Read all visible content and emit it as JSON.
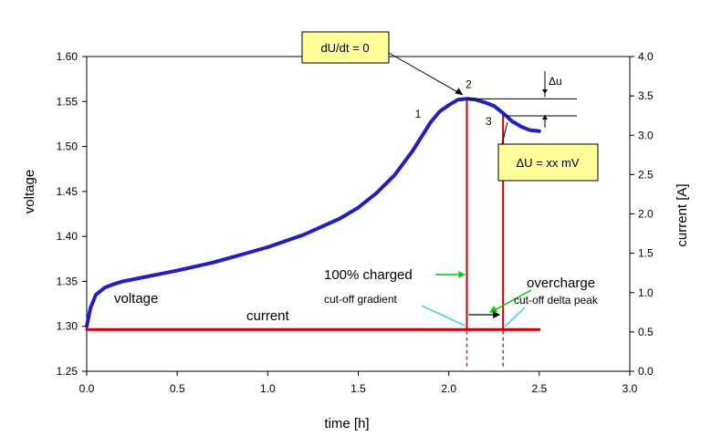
{
  "chart_data": {
    "type": "line",
    "xlabel": "time  [h]",
    "ylabel": "voltage",
    "y2label": "current  [A]",
    "xlim": [
      0.0,
      3.0
    ],
    "ylim": [
      1.25,
      1.6
    ],
    "y2lim": [
      0.0,
      4.0
    ],
    "x_ticks": [
      "0.0",
      "0.5",
      "1.0",
      "1.5",
      "2.0",
      "2.5",
      "3.0"
    ],
    "y_ticks": [
      "1.25",
      "1.30",
      "1.35",
      "1.40",
      "1.45",
      "1.50",
      "1.55",
      "1.60"
    ],
    "y2_ticks": [
      "0.0",
      "0.5",
      "1.0",
      "1.5",
      "2.0",
      "2.5",
      "3.0",
      "3.5",
      "4.0"
    ],
    "grid": false,
    "series": [
      {
        "name": "voltage",
        "axis": "left",
        "color": "#2020c0",
        "x": [
          0.0,
          0.02,
          0.05,
          0.1,
          0.15,
          0.2,
          0.3,
          0.5,
          0.7,
          1.0,
          1.2,
          1.4,
          1.5,
          1.6,
          1.7,
          1.8,
          1.9,
          1.95,
          2.0,
          2.05,
          2.1,
          2.15,
          2.2,
          2.25,
          2.3,
          2.35,
          2.4,
          2.45,
          2.5
        ],
        "values": [
          1.3,
          1.32,
          1.335,
          1.343,
          1.347,
          1.35,
          1.354,
          1.362,
          1.371,
          1.388,
          1.402,
          1.42,
          1.432,
          1.448,
          1.468,
          1.495,
          1.527,
          1.539,
          1.546,
          1.552,
          1.553,
          1.552,
          1.549,
          1.545,
          1.537,
          1.528,
          1.522,
          1.518,
          1.517
        ]
      },
      {
        "name": "current",
        "axis": "right",
        "color": "#cc0000",
        "x": [
          0.0,
          2.5
        ],
        "values": [
          0.53,
          0.53
        ]
      }
    ],
    "point_labels": [
      {
        "text": "1",
        "x": 1.83,
        "y": 1.532
      },
      {
        "text": "2",
        "x": 2.11,
        "y": 1.565
      },
      {
        "text": "3",
        "x": 2.22,
        "y": 1.524
      }
    ],
    "vertical_markers": [
      {
        "x": 2.1,
        "from": 1.553,
        "to": 1.255
      },
      {
        "x": 2.3,
        "from": 1.537,
        "to": 1.255
      }
    ],
    "annotations": {
      "voltage_label": "voltage",
      "current_label": "current",
      "box_dudt": "dU/dt = 0",
      "box_delta": "ΔU = xx mV",
      "delta_u_small": "Δu",
      "full_charged": "100% charged",
      "overcharge": "overcharge",
      "cutoff_gradient": "cut-off gradient",
      "cutoff_delta": "cut-off delta peak"
    },
    "colors": {
      "voltage": "#2020c0",
      "current": "#cc0000",
      "box_fill": "#ffff99",
      "green_arrow": "#00cc00",
      "cyan_arrow": "#33ccff"
    }
  }
}
